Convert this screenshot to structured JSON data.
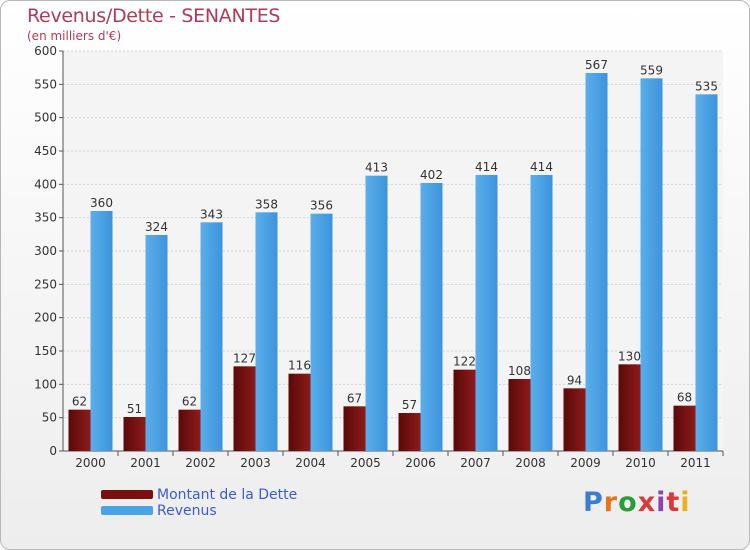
{
  "header": {
    "title": "Revenus/Dette - SENANTES",
    "subtitle": "(en milliers d'€)"
  },
  "legend": {
    "items": [
      {
        "label": "Montant de la Dette",
        "color": "#7a0f0f"
      },
      {
        "label": "Revenus",
        "color": "#4aa3e6"
      }
    ]
  },
  "logo": {
    "text": "Proxiti",
    "colors": [
      "#3a7bd5",
      "#e8731a",
      "#2e9b3a",
      "#d83a3a",
      "#8e44ad",
      "#d83a3a",
      "#e8b21a"
    ]
  },
  "chart_data": {
    "type": "bar",
    "title": "Revenus/Dette - SENANTES",
    "subtitle": "(en milliers d'€)",
    "categories": [
      "2000",
      "2001",
      "2002",
      "2003",
      "2004",
      "2005",
      "2006",
      "2007",
      "2008",
      "2009",
      "2010",
      "2011"
    ],
    "series": [
      {
        "name": "Montant de la Dette",
        "color": "#7a0f0f",
        "values": [
          62,
          51,
          62,
          127,
          116,
          67,
          57,
          122,
          108,
          94,
          130,
          68
        ]
      },
      {
        "name": "Revenus",
        "color": "#4aa3e6",
        "values": [
          360,
          324,
          343,
          358,
          356,
          413,
          402,
          414,
          414,
          567,
          559,
          535
        ]
      }
    ],
    "ylim": [
      0,
      600
    ],
    "yticks": [
      0,
      50,
      100,
      150,
      200,
      250,
      300,
      350,
      400,
      450,
      500,
      550,
      600
    ],
    "grid": true,
    "legend_position": "bottom-left"
  }
}
